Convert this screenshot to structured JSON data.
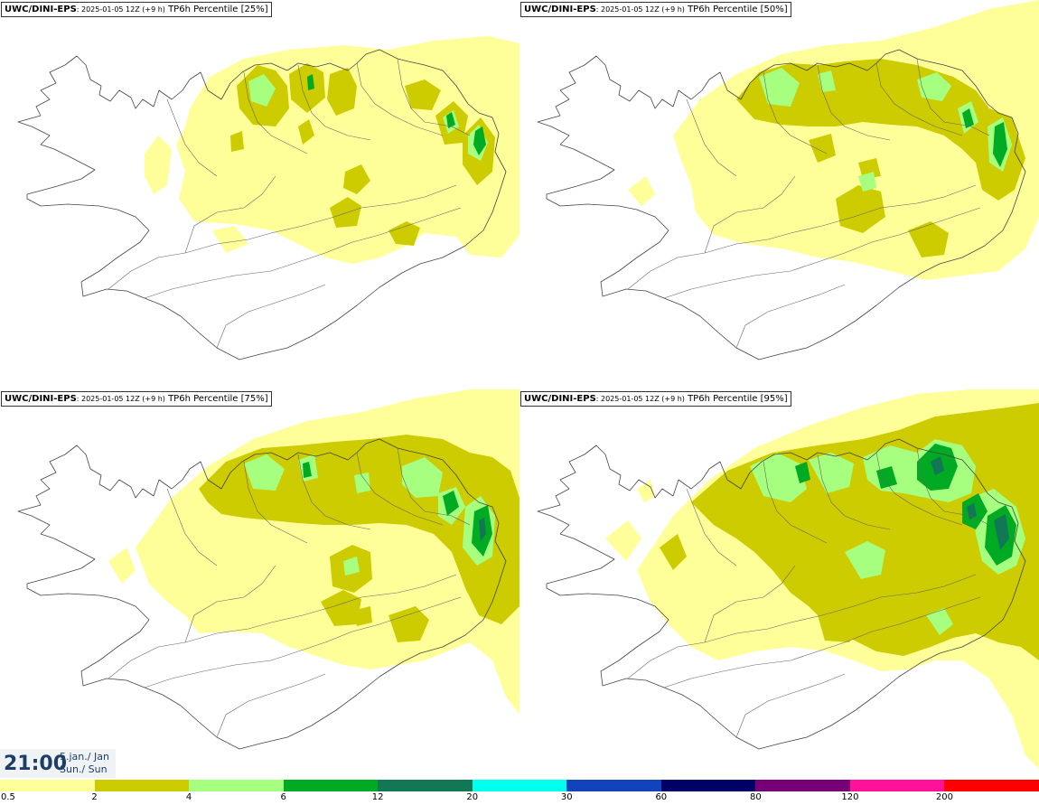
{
  "panels": [
    {
      "source": "UWC/DINI-EPS",
      "run": ": 2025-01-05 12Z (+9 h)",
      "param": " TP6h Percentile [25%]",
      "level": 0
    },
    {
      "source": "UWC/DINI-EPS",
      "run": ": 2025-01-05 12Z (+9 h)",
      "param": " TP6h Percentile [50%]",
      "level": 1
    },
    {
      "source": "UWC/DINI-EPS",
      "run": ": 2025-01-05 12Z (+9 h)",
      "param": " TP6h Percentile [75%]",
      "level": 2
    },
    {
      "source": "UWC/DINI-EPS",
      "run": ": 2025-01-05 12Z (+9 h)",
      "param": " TP6h Percentile [95%]",
      "level": 3
    }
  ],
  "valid_time": {
    "time": "21:00",
    "date_line1": "5.jan./ Jan",
    "date_line2": "Sun./ Sun"
  },
  "legend": {
    "colors": [
      "#ffff99",
      "#cccc00",
      "#a6ff7f",
      "#00aa22",
      "#117755",
      "#00ffee",
      "#1144bb",
      "#000066",
      "#770077",
      "#ff1199",
      "#ff0000"
    ],
    "labels": [
      "0.5",
      "2",
      "4",
      "6",
      "12",
      "20",
      "30",
      "60",
      "80",
      "120",
      "200"
    ]
  }
}
